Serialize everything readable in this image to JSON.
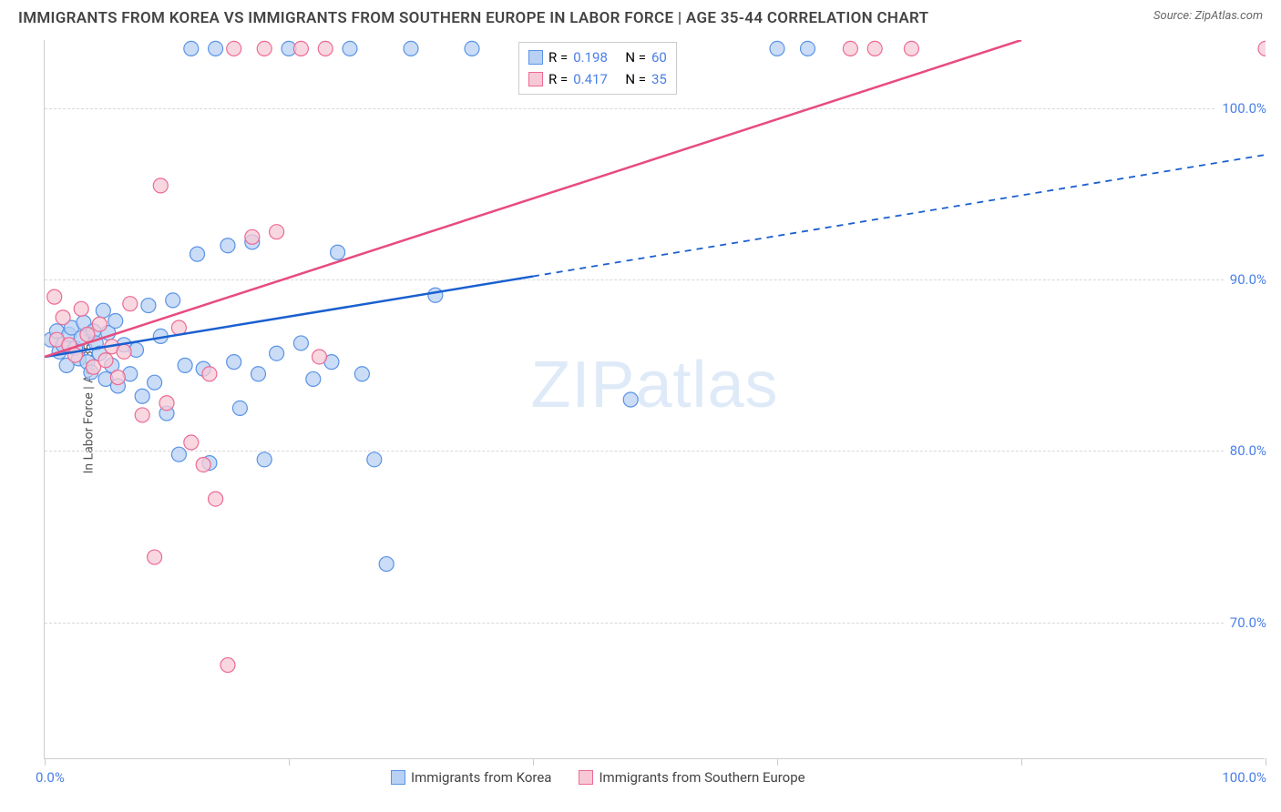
{
  "header": {
    "title": "IMMIGRANTS FROM KOREA VS IMMIGRANTS FROM SOUTHERN EUROPE IN LABOR FORCE | AGE 35-44 CORRELATION CHART",
    "source_prefix": "Source: ",
    "source_name": "ZipAtlas.com"
  },
  "chart": {
    "type": "scatter",
    "y_axis_title": "In Labor Force | Age 35-44",
    "xlim": [
      0,
      100
    ],
    "ylim": [
      62,
      104
    ],
    "x_label_min": "0.0%",
    "x_label_max": "100.0%",
    "y_gridlines": [
      {
        "value": 70,
        "label": "70.0%"
      },
      {
        "value": 80,
        "label": "80.0%"
      },
      {
        "value": 90,
        "label": "90.0%"
      },
      {
        "value": 100,
        "label": "100.0%"
      }
    ],
    "x_ticks": [
      0,
      20,
      40,
      60,
      80,
      100
    ],
    "background_color": "#ffffff",
    "grid_color": "#d8d8d8",
    "series": [
      {
        "name": "Immigrants from Korea",
        "color_fill": "#b8d0f3",
        "color_stroke": "#5a93e6",
        "line_color": "#1a5fd0",
        "marker_radius": 8,
        "marker_opacity": 0.75,
        "R": "0.198",
        "N": "60",
        "regression_solid": {
          "x1": 0,
          "y1": 85.5,
          "x2": 40,
          "y2": 90.2
        },
        "regression_dashed": {
          "x1": 40,
          "y1": 90.2,
          "x2": 100,
          "y2": 97.3
        },
        "points": [
          [
            0.5,
            86.5
          ],
          [
            1,
            87
          ],
          [
            1.2,
            85.8
          ],
          [
            1.5,
            86.2
          ],
          [
            1.8,
            85
          ],
          [
            2,
            86.8
          ],
          [
            2.2,
            87.2
          ],
          [
            2.5,
            86
          ],
          [
            2.8,
            85.4
          ],
          [
            3,
            86.6
          ],
          [
            3.2,
            87.5
          ],
          [
            3.5,
            85.2
          ],
          [
            3.8,
            84.6
          ],
          [
            4,
            87
          ],
          [
            4.2,
            86.3
          ],
          [
            4.5,
            85.7
          ],
          [
            4.8,
            88.2
          ],
          [
            5,
            84.2
          ],
          [
            5.2,
            86.9
          ],
          [
            5.5,
            85
          ],
          [
            5.8,
            87.6
          ],
          [
            6,
            83.8
          ],
          [
            6.5,
            86.2
          ],
          [
            7,
            84.5
          ],
          [
            7.5,
            85.9
          ],
          [
            8,
            83.2
          ],
          [
            8.5,
            88.5
          ],
          [
            9,
            84
          ],
          [
            9.5,
            86.7
          ],
          [
            10,
            82.2
          ],
          [
            10.5,
            88.8
          ],
          [
            11,
            79.8
          ],
          [
            11.5,
            85
          ],
          [
            12,
            103.5
          ],
          [
            12.5,
            91.5
          ],
          [
            13,
            84.8
          ],
          [
            13.5,
            79.3
          ],
          [
            14,
            103.5
          ],
          [
            15,
            92
          ],
          [
            15.5,
            85.2
          ],
          [
            16,
            82.5
          ],
          [
            17,
            92.2
          ],
          [
            17.5,
            84.5
          ],
          [
            18,
            79.5
          ],
          [
            19,
            85.7
          ],
          [
            20,
            103.5
          ],
          [
            21,
            86.3
          ],
          [
            22,
            84.2
          ],
          [
            23.5,
            85.2
          ],
          [
            24,
            91.6
          ],
          [
            25,
            103.5
          ],
          [
            26,
            84.5
          ],
          [
            27,
            79.5
          ],
          [
            28,
            73.4
          ],
          [
            30,
            103.5
          ],
          [
            32,
            89.1
          ],
          [
            35,
            103.5
          ],
          [
            48,
            83.0
          ],
          [
            60,
            103.5
          ],
          [
            62.5,
            103.5
          ]
        ]
      },
      {
        "name": "Immigrants from Southern Europe",
        "color_fill": "#f7c9d6",
        "color_stroke": "#ec6a94",
        "line_color": "#e84b7f",
        "marker_radius": 8,
        "marker_opacity": 0.75,
        "R": "0.417",
        "N": "35",
        "regression_solid": {
          "x1": 0,
          "y1": 85.5,
          "x2": 80,
          "y2": 104
        },
        "regression_dashed": null,
        "points": [
          [
            0.8,
            89
          ],
          [
            1,
            86.5
          ],
          [
            1.5,
            87.8
          ],
          [
            2,
            86.2
          ],
          [
            2.5,
            85.6
          ],
          [
            3,
            88.3
          ],
          [
            3.5,
            86.8
          ],
          [
            4,
            84.9
          ],
          [
            4.5,
            87.4
          ],
          [
            5,
            85.3
          ],
          [
            5.5,
            86.1
          ],
          [
            6,
            84.3
          ],
          [
            6.5,
            85.8
          ],
          [
            7,
            88.6
          ],
          [
            8,
            82.1
          ],
          [
            9,
            73.8
          ],
          [
            9.5,
            95.5
          ],
          [
            10,
            82.8
          ],
          [
            11,
            87.2
          ],
          [
            12,
            80.5
          ],
          [
            13,
            79.2
          ],
          [
            13.5,
            84.5
          ],
          [
            14,
            77.2
          ],
          [
            15,
            67.5
          ],
          [
            15.5,
            103.5
          ],
          [
            17,
            92.5
          ],
          [
            18,
            103.5
          ],
          [
            19,
            92.8
          ],
          [
            21,
            103.5
          ],
          [
            22.5,
            85.5
          ],
          [
            23,
            103.5
          ],
          [
            66,
            103.5
          ],
          [
            68,
            103.5
          ],
          [
            71,
            103.5
          ],
          [
            100,
            103.5
          ]
        ]
      }
    ],
    "legend_top": {
      "r_label": "R =",
      "n_label": "N ="
    },
    "watermark": {
      "pre": "ZIP",
      "post": "atlas"
    }
  }
}
